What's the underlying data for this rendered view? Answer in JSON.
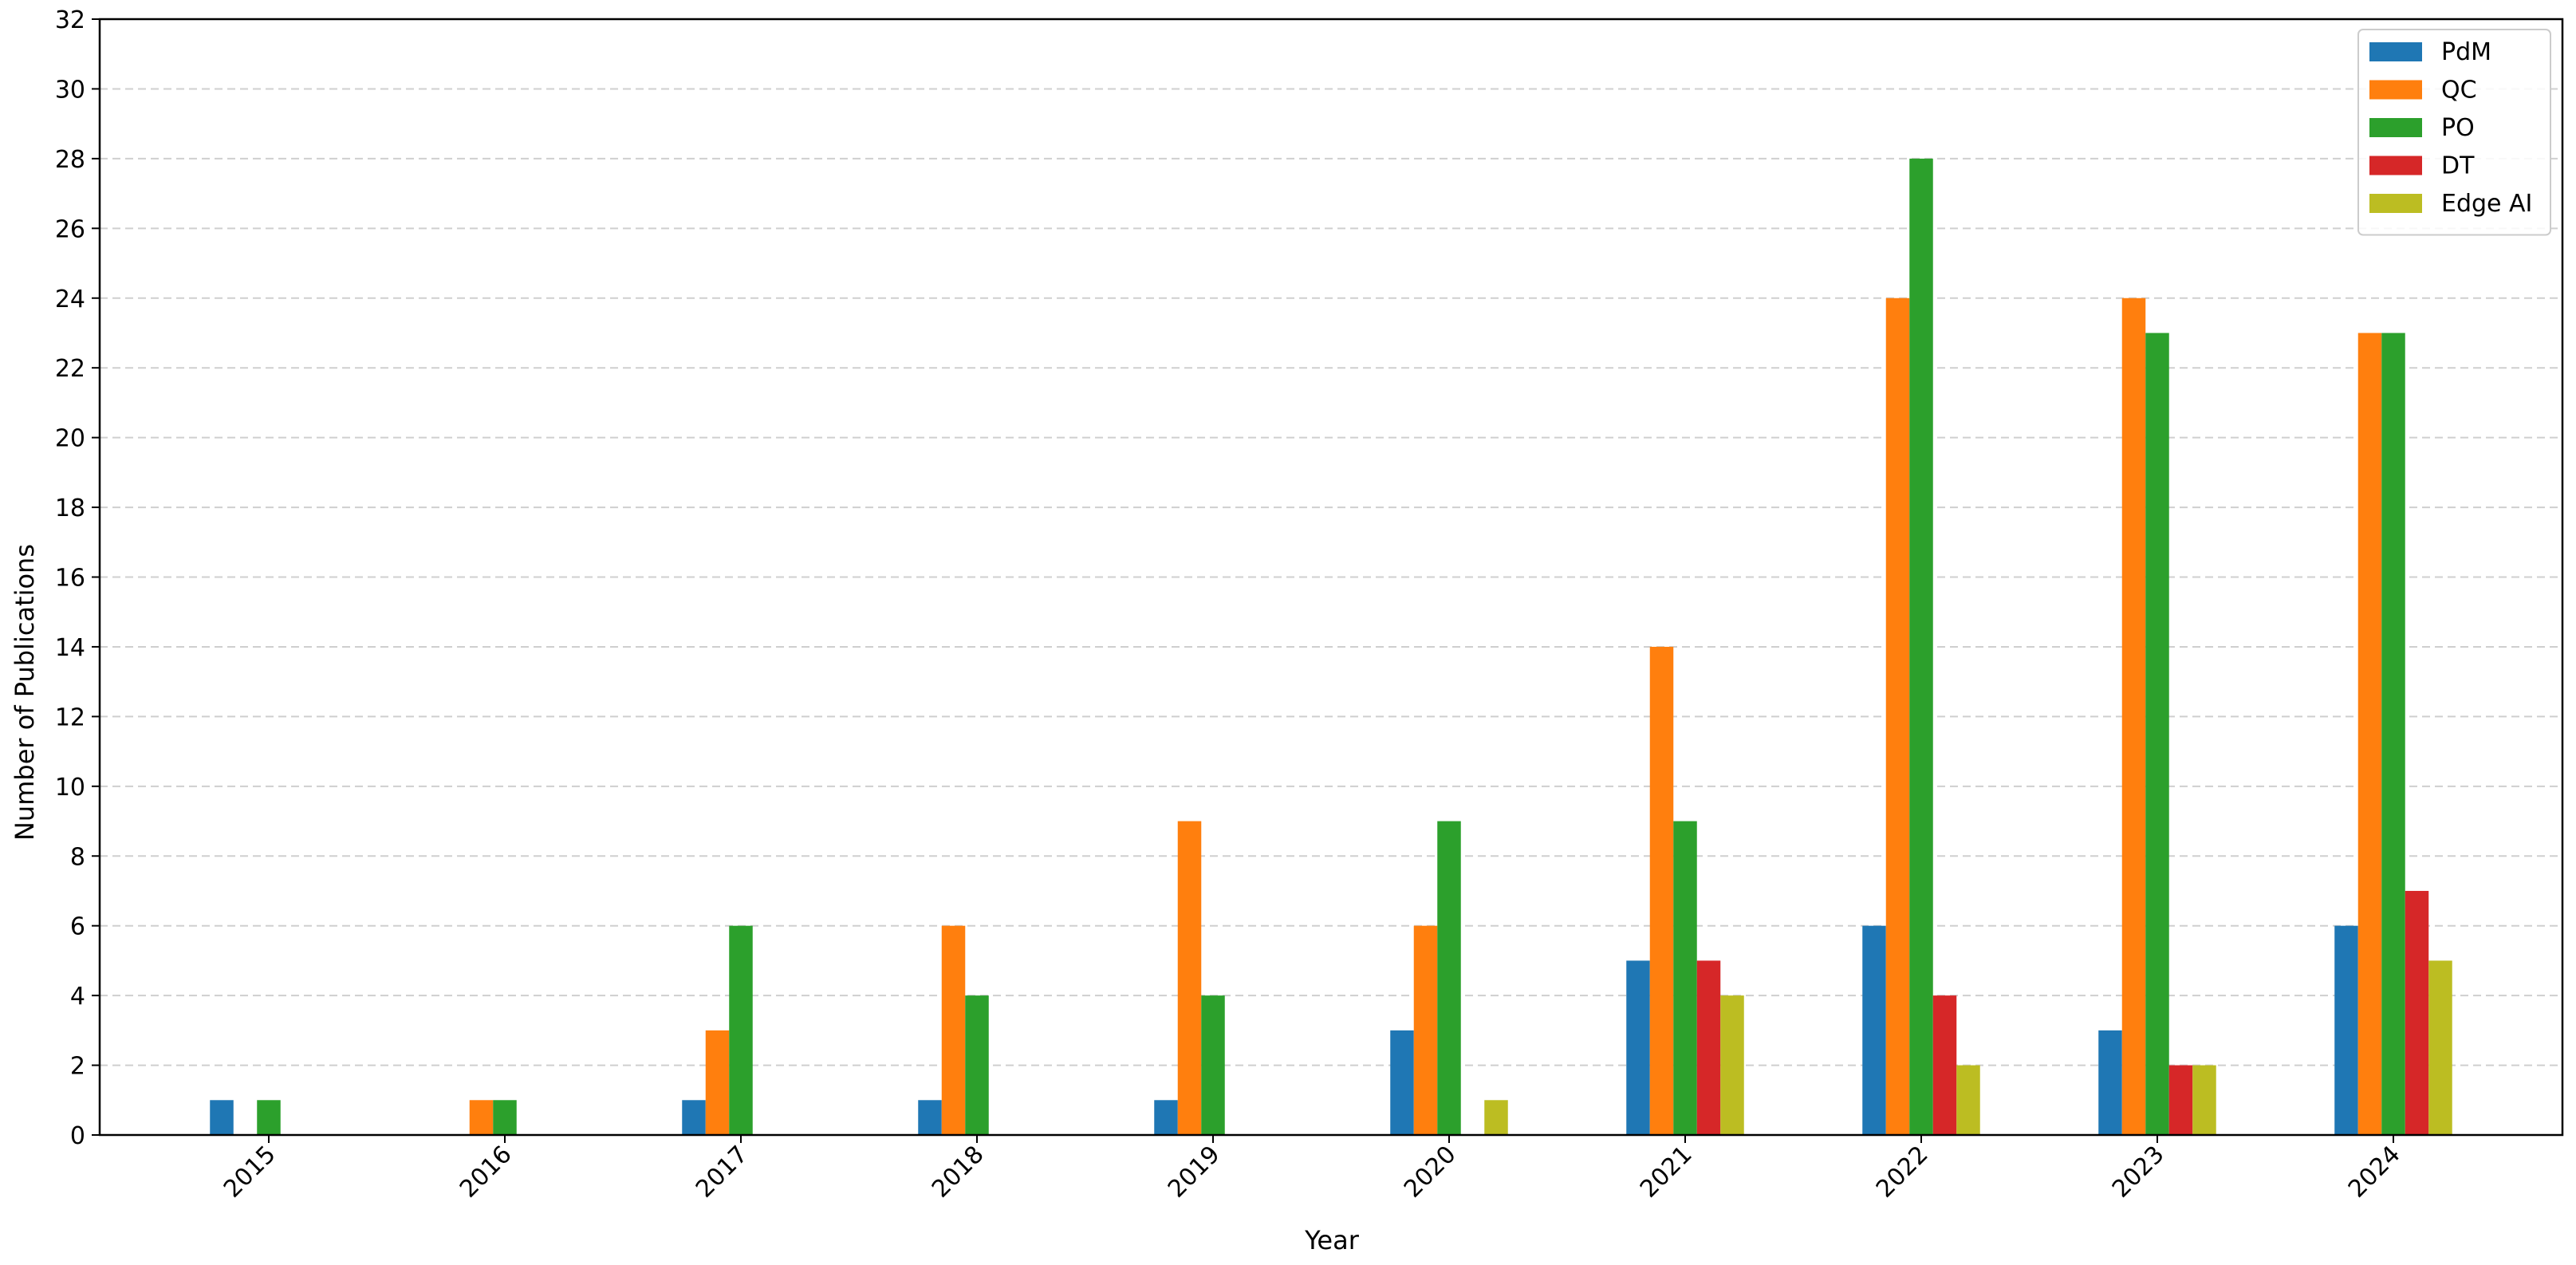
{
  "chart_data": {
    "type": "bar",
    "title": "",
    "xlabel": "Year",
    "ylabel": "Number of Publications",
    "categories": [
      "2015",
      "2016",
      "2017",
      "2018",
      "2019",
      "2020",
      "2021",
      "2022",
      "2023",
      "2024"
    ],
    "series": [
      {
        "name": "PdM",
        "color": "#1f77b4",
        "values": [
          1,
          0,
          1,
          1,
          1,
          3,
          5,
          6,
          3,
          6
        ]
      },
      {
        "name": "QC",
        "color": "#ff7f0e",
        "values": [
          0,
          1,
          3,
          6,
          9,
          6,
          14,
          24,
          24,
          23
        ]
      },
      {
        "name": "PO",
        "color": "#2ca02c",
        "values": [
          1,
          1,
          6,
          4,
          4,
          9,
          9,
          28,
          23,
          23
        ]
      },
      {
        "name": "DT",
        "color": "#d62728",
        "values": [
          0,
          0,
          0,
          0,
          0,
          0,
          5,
          4,
          2,
          7
        ]
      },
      {
        "name": "Edge AI",
        "color": "#bcbd22",
        "values": [
          0,
          0,
          0,
          0,
          0,
          1,
          4,
          2,
          2,
          5
        ]
      }
    ],
    "ylim": [
      0,
      32
    ],
    "yticks": [
      0,
      2,
      4,
      6,
      8,
      10,
      12,
      14,
      16,
      18,
      20,
      22,
      24,
      26,
      28,
      30,
      32
    ],
    "xtick_rotation": 45,
    "grid": "horizontal dashed",
    "legend_position": "top-right"
  }
}
